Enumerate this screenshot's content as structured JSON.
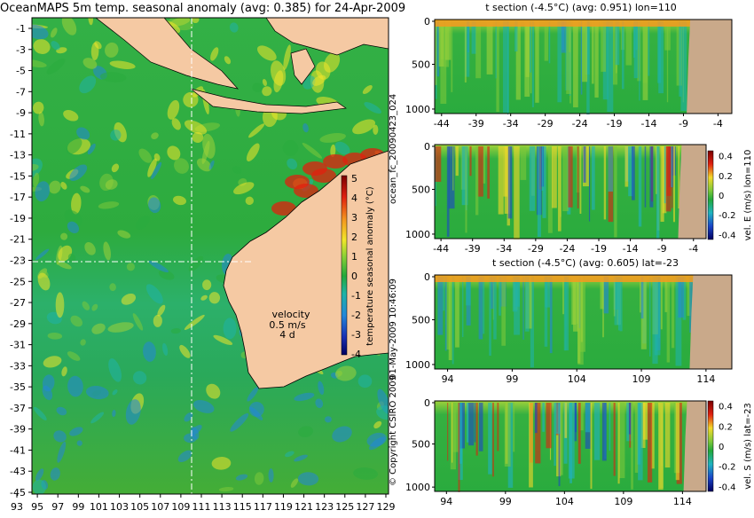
{
  "map": {
    "title": "OceanMAPS 5m temp. seasonal anomaly (avg: 0.385) for 24-Apr-2009",
    "lat_ticks": [
      "-1",
      "-3",
      "-5",
      "-7",
      "-9",
      "-11",
      "-13",
      "-15",
      "-17",
      "-19",
      "-21",
      "-23",
      "-25",
      "-27",
      "-29",
      "-31",
      "-33",
      "-35",
      "-37",
      "-39",
      "-41",
      "-43",
      "-45"
    ],
    "lon_ticks": [
      "93",
      "95",
      "97",
      "99",
      "101",
      "103",
      "105",
      "107",
      "109",
      "111",
      "113",
      "115",
      "117",
      "119",
      "121",
      "123",
      "125",
      "127",
      "129"
    ],
    "colorbar_ticks": [
      "5",
      "4",
      "3",
      "2",
      "1",
      "0",
      "-1",
      "-2",
      "-3",
      "-4"
    ],
    "colorbar_label": "temperature seasonal anomaly (°C)",
    "velocity_label": "velocity",
    "velocity_scale": "0.5 m/s",
    "velocity_scale2": "4 d",
    "crosshair": {
      "lat": -23,
      "lon": 110
    }
  },
  "panels": {
    "p1": {
      "title": "t section (-4.5°C) (avg: 0.951) lon=110",
      "x_ticks": [
        "-44",
        "-39",
        "-34",
        "-29",
        "-24",
        "-19",
        "-14",
        "-9",
        "-4"
      ],
      "y_ticks": [
        "0",
        "500",
        "1000"
      ]
    },
    "p2": {
      "x_ticks": [
        "-44",
        "-39",
        "-34",
        "-29",
        "-24",
        "-19",
        "-14",
        "-9",
        "-4"
      ],
      "y_ticks": [
        "0",
        "500",
        "1000"
      ],
      "cb_ticks": [
        "0.4",
        "0.2",
        "0",
        "-0.2",
        "-0.4"
      ],
      "cb_label": "vel. E (m/s) lon=110"
    },
    "p3": {
      "title": "t section (-4.5°C) (avg: 0.605) lat=-23",
      "x_ticks": [
        "94",
        "99",
        "104",
        "109",
        "114"
      ],
      "y_ticks": [
        "0",
        "500",
        "1000"
      ]
    },
    "p4": {
      "x_ticks": [
        "94",
        "99",
        "104",
        "109",
        "114"
      ],
      "y_ticks": [
        "0",
        "500",
        "1000"
      ],
      "cb_ticks": [
        "0.4",
        "0.2",
        "0",
        "-0.2",
        "-0.4"
      ],
      "cb_label": "vel. S (m/s) lat=-23"
    }
  },
  "side_labels": {
    "forecast_id": "ocean_fc_20090423_024",
    "run_date": "01-May-2009 10:46:09",
    "copyright": "© Copyright CSIRO 2009"
  },
  "chart_data": [
    {
      "type": "heatmap",
      "title": "OceanMAPS 5m temp. seasonal anomaly (avg: 0.385) for 24-Apr-2009",
      "xlim": [
        93,
        129
      ],
      "ylim": [
        -45,
        0
      ],
      "zlim": [
        -4,
        5
      ],
      "grid": false
    },
    {
      "type": "heatmap",
      "title": "t section (-4.5°C) (avg: 0.951) lon=110",
      "xlim": [
        -45,
        -2
      ],
      "ylim": [
        1050,
        0
      ]
    },
    {
      "type": "heatmap",
      "ylabel_side": "vel. E (m/s) lon=110",
      "xlim": [
        -45,
        -2
      ],
      "ylim": [
        1050,
        0
      ],
      "zlim": [
        -0.4,
        0.4
      ]
    },
    {
      "type": "heatmap",
      "title": "t section (-4.5°C) (avg: 0.605) lat=-23",
      "xlim": [
        93,
        116
      ],
      "ylim": [
        1050,
        0
      ]
    },
    {
      "type": "heatmap",
      "ylabel_side": "vel. S (m/s) lat=-23",
      "xlim": [
        93,
        116
      ],
      "ylim": [
        1050,
        0
      ],
      "zlim": [
        -0.4,
        0.4
      ]
    }
  ],
  "colors": {
    "land": "#f5c9a3",
    "section_land": "#c9a98a",
    "ocean_mid": "#2aab3c",
    "warm": "#f3e020",
    "hot": "#d4341a",
    "cool": "#2a9fd6"
  }
}
